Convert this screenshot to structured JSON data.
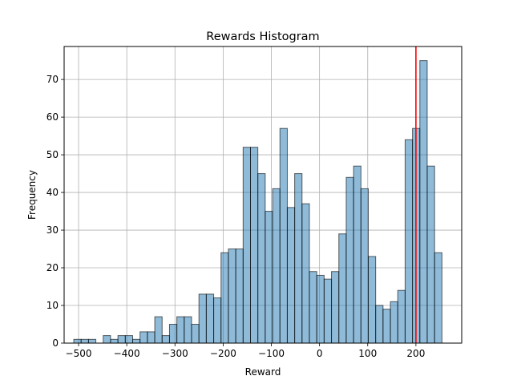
{
  "chart_data": {
    "type": "histogram",
    "title": "Rewards Histogram",
    "xlabel": "Reward",
    "ylabel": "Frequency",
    "xlim": [
      -530,
      295
    ],
    "ylim": [
      0,
      78.75
    ],
    "xticks": [
      -500,
      -400,
      -300,
      -200,
      -100,
      0,
      100,
      200
    ],
    "yticks": [
      0,
      10,
      20,
      30,
      40,
      50,
      60,
      70
    ],
    "grid": true,
    "bin_start": -510,
    "bin_width": 15.28,
    "counts": [
      1,
      1,
      1,
      0,
      2,
      1,
      2,
      2,
      1,
      3,
      3,
      7,
      2,
      5,
      7,
      7,
      5,
      13,
      13,
      12,
      24,
      25,
      25,
      52,
      52,
      45,
      35,
      41,
      57,
      36,
      45,
      37,
      19,
      18,
      17,
      19,
      29,
      44,
      47,
      41,
      23,
      10,
      9,
      11,
      14,
      54,
      57,
      75,
      47,
      24
    ],
    "bar_color": "#1f77b4",
    "bar_alpha": 0.5,
    "reference_line": {
      "x": 200,
      "color": "#ff0000"
    }
  }
}
